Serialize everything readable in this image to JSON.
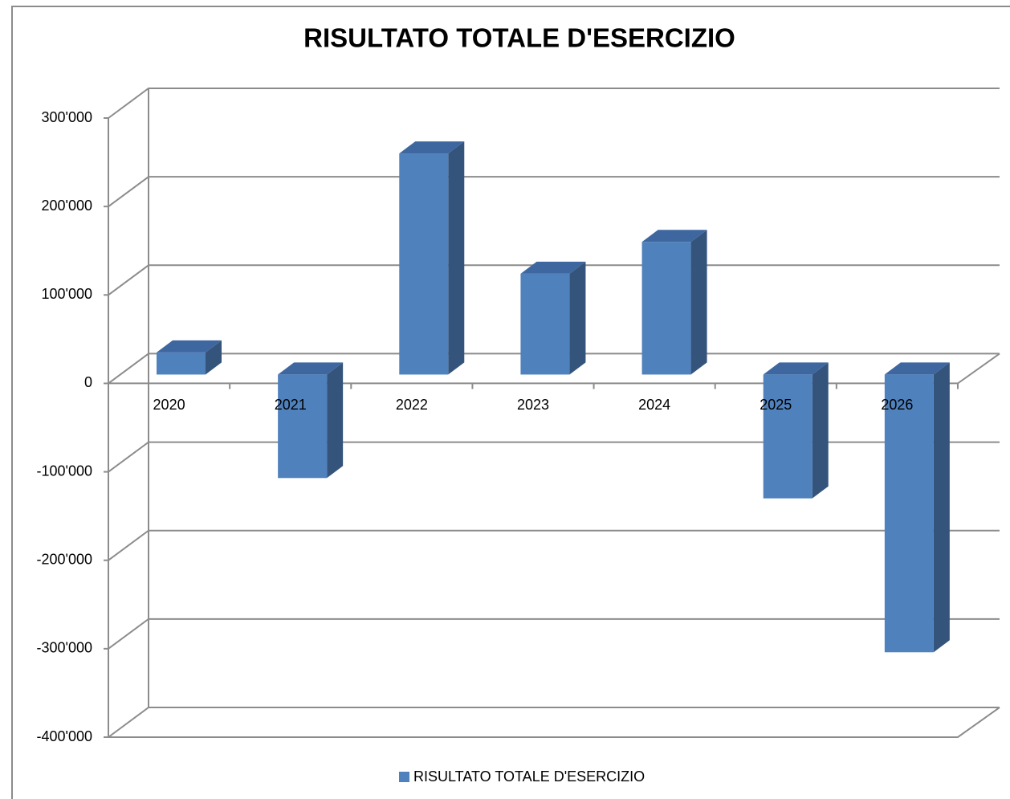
{
  "chart_data": {
    "type": "bar3d",
    "title": "RISULTATO TOTALE D'ESERCIZIO",
    "categories": [
      "2020",
      "2021",
      "2022",
      "2023",
      "2024",
      "2025",
      "2026"
    ],
    "series": [
      {
        "name": "RISULTATO TOTALE D'ESERCIZIO",
        "color": "#4f81bd",
        "values": [
          25000,
          -117000,
          250000,
          114000,
          150000,
          -140000,
          -314000
        ]
      }
    ],
    "ylim": [
      -400000,
      300000
    ],
    "yticks": [
      {
        "value": -400000,
        "label": "-400'000"
      },
      {
        "value": -300000,
        "label": "-300'000"
      },
      {
        "value": -200000,
        "label": "-200'000"
      },
      {
        "value": -100000,
        "label": "-100'000"
      },
      0,
      {
        "value": 100000,
        "label": "100'000"
      },
      {
        "value": 200000,
        "label": "200'000"
      },
      {
        "value": 300000,
        "label": "300'000"
      }
    ],
    "grid": true,
    "legend": "bottom"
  }
}
